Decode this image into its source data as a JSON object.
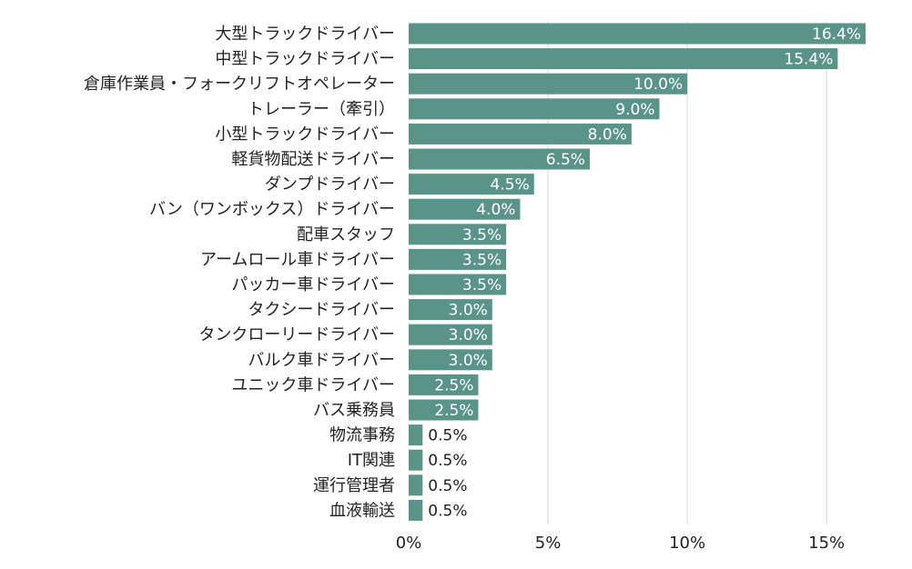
{
  "chart_data": {
    "type": "bar",
    "orientation": "horizontal",
    "title": "",
    "xlabel": "",
    "ylabel": "",
    "categories": [
      "大型トラックドライバー",
      "中型トラックドライバー",
      "倉庫作業員・フォークリフトオペレーター",
      "トレーラー（牽引）",
      "小型トラックドライバー",
      "軽貨物配送ドライバー",
      "ダンプドライバー",
      "バン（ワンボックス）ドライバー",
      "配車スタッフ",
      "アームロール車ドライバー",
      "パッカー車ドライバー",
      "タクシードライバー",
      "タンクローリードライバー",
      "バルク車ドライバー",
      "ユニック車ドライバー",
      "バス乗務員",
      "物流事務",
      "IT関連",
      "運行管理者",
      "血液輸送"
    ],
    "values": [
      16.4,
      15.4,
      10.0,
      9.0,
      8.0,
      6.5,
      4.5,
      4.0,
      3.5,
      3.5,
      3.5,
      3.0,
      3.0,
      3.0,
      2.5,
      2.5,
      0.5,
      0.5,
      0.5,
      0.5
    ],
    "value_labels": [
      "16.4%",
      "15.4%",
      "10.0%",
      "9.0%",
      "8.0%",
      "6.5%",
      "4.5%",
      "4.0%",
      "3.5%",
      "3.5%",
      "3.5%",
      "3.0%",
      "3.0%",
      "3.0%",
      "2.5%",
      "2.5%",
      "0.5%",
      "0.5%",
      "0.5%",
      "0.5%"
    ],
    "xlim": [
      0,
      18
    ],
    "xticks": [
      0,
      5,
      10,
      15
    ],
    "xtick_labels": [
      "0%",
      "5%",
      "10%",
      "15%"
    ],
    "grid": "vertical",
    "bar_color": "#5a9387",
    "grid_color": "#d4d4d4"
  }
}
